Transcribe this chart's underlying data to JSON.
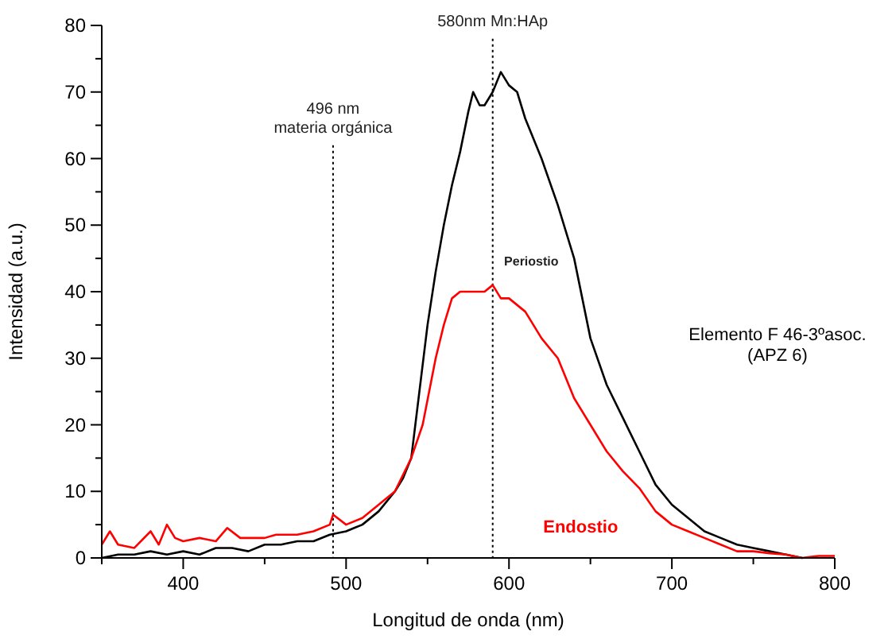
{
  "chart_data": {
    "type": "line",
    "xlabel": "Longitud de onda (nm)",
    "ylabel": "Intensidad (a.u.)",
    "xlim": [
      350,
      800
    ],
    "ylim": [
      0,
      80
    ],
    "xticks": [
      {
        "value": 350,
        "label": null
      },
      400,
      {
        "value": 450,
        "label": null
      },
      500,
      {
        "value": 550,
        "label": null
      },
      600,
      {
        "value": 650,
        "label": null
      },
      700,
      {
        "value": 750,
        "label": null
      },
      800
    ],
    "yticks": [
      0,
      {
        "value": 5,
        "label": null
      },
      10,
      {
        "value": 15,
        "label": null
      },
      20,
      {
        "value": 25,
        "label": null
      },
      30,
      {
        "value": 35,
        "label": null
      },
      40,
      {
        "value": 45,
        "label": null
      },
      50,
      {
        "value": 55,
        "label": null
      },
      60,
      {
        "value": 65,
        "label": null
      },
      70,
      {
        "value": 75,
        "label": null
      },
      80
    ],
    "grid": false,
    "marker": "none",
    "line_style": "solid",
    "series": [
      {
        "name": "Periostio",
        "color": "#000000",
        "x": [
          350,
          360,
          370,
          380,
          390,
          400,
          410,
          420,
          430,
          440,
          450,
          460,
          470,
          480,
          490,
          500,
          505,
          510,
          520,
          530,
          535,
          540,
          545,
          550,
          555,
          560,
          565,
          570,
          575,
          578,
          582,
          585,
          590,
          595,
          600,
          605,
          610,
          620,
          630,
          640,
          650,
          660,
          670,
          680,
          690,
          700,
          710,
          720,
          730,
          740,
          750,
          760,
          770,
          780
        ],
        "values": [
          0,
          0.5,
          0.5,
          1,
          0.5,
          1,
          0.5,
          1.5,
          1.5,
          1,
          2,
          2,
          2.5,
          2.5,
          3.5,
          4,
          4.5,
          5,
          7,
          10,
          12,
          15,
          25,
          35,
          43,
          50,
          56,
          61,
          67,
          70,
          68,
          68,
          70,
          73,
          71,
          70,
          66,
          60,
          53,
          45,
          33,
          26,
          21,
          16,
          11,
          8,
          6,
          4,
          3,
          2,
          1.5,
          1,
          0.5,
          0
        ]
      },
      {
        "name": "Endostio",
        "color": "#ff0000",
        "x": [
          350,
          355,
          360,
          370,
          380,
          385,
          390,
          395,
          400,
          410,
          420,
          427,
          435,
          450,
          457,
          470,
          480,
          490,
          492,
          500,
          510,
          520,
          530,
          540,
          547,
          555,
          560,
          565,
          570,
          580,
          585,
          590,
          595,
          600,
          610,
          620,
          630,
          640,
          650,
          660,
          670,
          680,
          690,
          700,
          710,
          720,
          730,
          740,
          750,
          760,
          770,
          780,
          790,
          800
        ],
        "values": [
          2,
          4,
          2,
          1.5,
          4,
          2,
          5,
          3,
          2.5,
          3,
          2.5,
          4.5,
          3,
          3,
          3.5,
          3.5,
          4,
          5,
          6.5,
          5,
          6,
          8,
          10,
          15,
          20,
          30,
          35,
          39,
          40,
          40,
          40,
          41,
          39,
          39,
          37,
          33,
          30,
          24,
          20,
          16,
          13,
          10.5,
          7,
          5,
          4,
          3,
          2,
          1,
          1,
          0.7,
          0.5,
          0,
          0.3,
          0.3
        ]
      }
    ],
    "ref_lines": [
      {
        "axis": "x",
        "value": 492,
        "label": "496 nm\nmateria orgánica",
        "line_style": "dotted",
        "color": "#000000"
      },
      {
        "axis": "x",
        "value": 590,
        "label": "580nm Mn:HAp",
        "line_style": "dotted",
        "color": "#000000"
      }
    ],
    "annotations": [
      "Elemento F 46-3ºasoc.\n(APZ 6)"
    ]
  }
}
